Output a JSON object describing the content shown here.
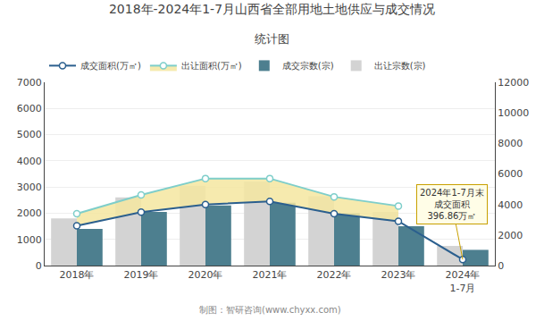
{
  "chart_data": {
    "type": "bar",
    "title": "2018年-2024年1-7月山西省全部用地土地供应与成交情况",
    "subtitle": "统计图",
    "categories": [
      "2018年",
      "2019年",
      "2020年",
      "2021年",
      "2022年",
      "2023年",
      "2024年\n1-7月"
    ],
    "series": [
      {
        "name": "出让宗数(宗)",
        "type": "bar",
        "color": "#d3d3d3",
        "values": [
          1800,
          2600,
          3050,
          3200,
          2650,
          2050,
          750
        ]
      },
      {
        "name": "成交宗数(宗)",
        "type": "bar",
        "color": "#4d7f8f",
        "values": [
          1400,
          2050,
          2300,
          2400,
          2000,
          1500,
          600
        ]
      },
      {
        "name": "出让面积(万㎡)",
        "type": "line",
        "axis": "y2",
        "color": "#7ececa",
        "marker": "circle",
        "values": [
          3400,
          4620,
          5700,
          5700,
          4500,
          3900,
          null
        ]
      },
      {
        "name": "成交面积(万㎡)",
        "type": "line",
        "axis": "y2",
        "color": "#2b5f8e",
        "marker": "circle",
        "values": [
          2600,
          3500,
          4000,
          4200,
          3400,
          2900,
          396.86
        ]
      }
    ],
    "ylim": [
      0,
      7000
    ],
    "yticks": [
      0,
      1000,
      2000,
      3000,
      4000,
      5000,
      6000,
      7000
    ],
    "y2lim": [
      0,
      12000
    ],
    "y2ticks": [
      0,
      2000,
      4000,
      6000,
      8000,
      10000,
      12000
    ],
    "grid": true,
    "legend": "upper left",
    "annotations": [
      {
        "text": "2024年1-7月末\n成交面积\n396.86万㎡",
        "x": "2024年\n1-7月",
        "y": 396.86
      }
    ],
    "footnote": "制图：智研咨询(www.chyxx.com)"
  }
}
